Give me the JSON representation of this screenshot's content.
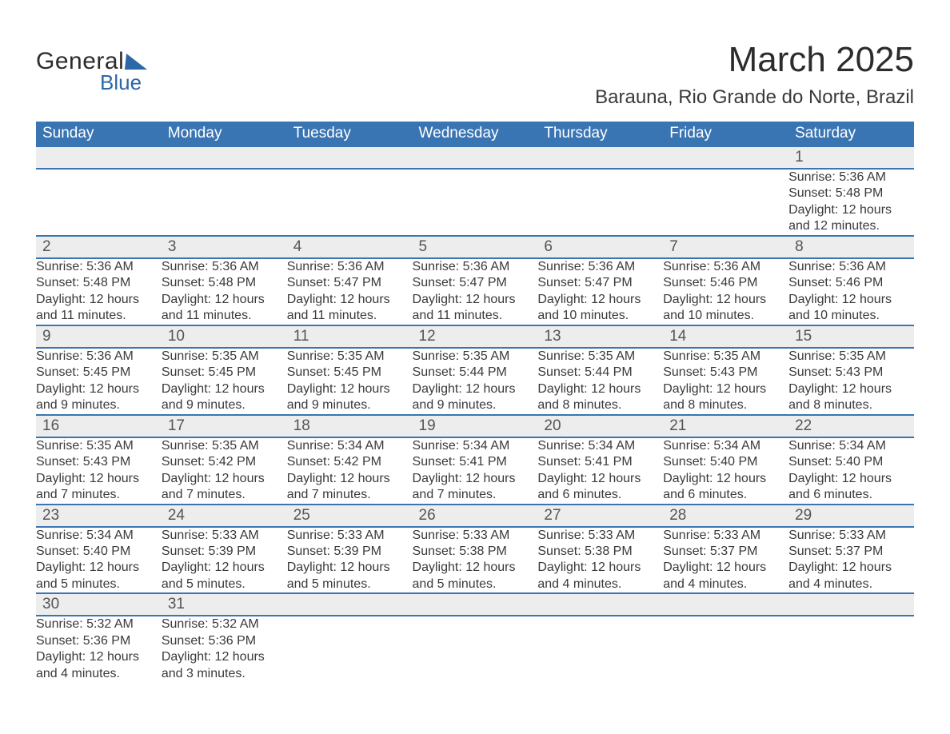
{
  "brand": {
    "word1": "General",
    "word2": "Blue",
    "accent_color": "#2c67a8"
  },
  "title": "March 2025",
  "location": "Barauna, Rio Grande do Norte, Brazil",
  "colors": {
    "header_bg": "#3a75b3",
    "header_text": "#ffffff",
    "row_separator": "#3a75b3",
    "daynum_bg": "#ededed",
    "body_text": "#3a3a3a",
    "page_bg": "#ffffff"
  },
  "font": {
    "family": "Arial",
    "title_size_pt": 33,
    "location_size_pt": 18,
    "header_size_pt": 14,
    "daynum_size_pt": 14,
    "detail_size_pt": 12
  },
  "weekdays": [
    "Sunday",
    "Monday",
    "Tuesday",
    "Wednesday",
    "Thursday",
    "Friday",
    "Saturday"
  ],
  "weeks": [
    [
      null,
      null,
      null,
      null,
      null,
      null,
      {
        "n": "1",
        "sunrise": "5:36 AM",
        "sunset": "5:48 PM",
        "daylight": "12 hours and 12 minutes."
      }
    ],
    [
      {
        "n": "2",
        "sunrise": "5:36 AM",
        "sunset": "5:48 PM",
        "daylight": "12 hours and 11 minutes."
      },
      {
        "n": "3",
        "sunrise": "5:36 AM",
        "sunset": "5:48 PM",
        "daylight": "12 hours and 11 minutes."
      },
      {
        "n": "4",
        "sunrise": "5:36 AM",
        "sunset": "5:47 PM",
        "daylight": "12 hours and 11 minutes."
      },
      {
        "n": "5",
        "sunrise": "5:36 AM",
        "sunset": "5:47 PM",
        "daylight": "12 hours and 11 minutes."
      },
      {
        "n": "6",
        "sunrise": "5:36 AM",
        "sunset": "5:47 PM",
        "daylight": "12 hours and 10 minutes."
      },
      {
        "n": "7",
        "sunrise": "5:36 AM",
        "sunset": "5:46 PM",
        "daylight": "12 hours and 10 minutes."
      },
      {
        "n": "8",
        "sunrise": "5:36 AM",
        "sunset": "5:46 PM",
        "daylight": "12 hours and 10 minutes."
      }
    ],
    [
      {
        "n": "9",
        "sunrise": "5:36 AM",
        "sunset": "5:45 PM",
        "daylight": "12 hours and 9 minutes."
      },
      {
        "n": "10",
        "sunrise": "5:35 AM",
        "sunset": "5:45 PM",
        "daylight": "12 hours and 9 minutes."
      },
      {
        "n": "11",
        "sunrise": "5:35 AM",
        "sunset": "5:45 PM",
        "daylight": "12 hours and 9 minutes."
      },
      {
        "n": "12",
        "sunrise": "5:35 AM",
        "sunset": "5:44 PM",
        "daylight": "12 hours and 9 minutes."
      },
      {
        "n": "13",
        "sunrise": "5:35 AM",
        "sunset": "5:44 PM",
        "daylight": "12 hours and 8 minutes."
      },
      {
        "n": "14",
        "sunrise": "5:35 AM",
        "sunset": "5:43 PM",
        "daylight": "12 hours and 8 minutes."
      },
      {
        "n": "15",
        "sunrise": "5:35 AM",
        "sunset": "5:43 PM",
        "daylight": "12 hours and 8 minutes."
      }
    ],
    [
      {
        "n": "16",
        "sunrise": "5:35 AM",
        "sunset": "5:43 PM",
        "daylight": "12 hours and 7 minutes."
      },
      {
        "n": "17",
        "sunrise": "5:35 AM",
        "sunset": "5:42 PM",
        "daylight": "12 hours and 7 minutes."
      },
      {
        "n": "18",
        "sunrise": "5:34 AM",
        "sunset": "5:42 PM",
        "daylight": "12 hours and 7 minutes."
      },
      {
        "n": "19",
        "sunrise": "5:34 AM",
        "sunset": "5:41 PM",
        "daylight": "12 hours and 7 minutes."
      },
      {
        "n": "20",
        "sunrise": "5:34 AM",
        "sunset": "5:41 PM",
        "daylight": "12 hours and 6 minutes."
      },
      {
        "n": "21",
        "sunrise": "5:34 AM",
        "sunset": "5:40 PM",
        "daylight": "12 hours and 6 minutes."
      },
      {
        "n": "22",
        "sunrise": "5:34 AM",
        "sunset": "5:40 PM",
        "daylight": "12 hours and 6 minutes."
      }
    ],
    [
      {
        "n": "23",
        "sunrise": "5:34 AM",
        "sunset": "5:40 PM",
        "daylight": "12 hours and 5 minutes."
      },
      {
        "n": "24",
        "sunrise": "5:33 AM",
        "sunset": "5:39 PM",
        "daylight": "12 hours and 5 minutes."
      },
      {
        "n": "25",
        "sunrise": "5:33 AM",
        "sunset": "5:39 PM",
        "daylight": "12 hours and 5 minutes."
      },
      {
        "n": "26",
        "sunrise": "5:33 AM",
        "sunset": "5:38 PM",
        "daylight": "12 hours and 5 minutes."
      },
      {
        "n": "27",
        "sunrise": "5:33 AM",
        "sunset": "5:38 PM",
        "daylight": "12 hours and 4 minutes."
      },
      {
        "n": "28",
        "sunrise": "5:33 AM",
        "sunset": "5:37 PM",
        "daylight": "12 hours and 4 minutes."
      },
      {
        "n": "29",
        "sunrise": "5:33 AM",
        "sunset": "5:37 PM",
        "daylight": "12 hours and 4 minutes."
      }
    ],
    [
      {
        "n": "30",
        "sunrise": "5:32 AM",
        "sunset": "5:36 PM",
        "daylight": "12 hours and 4 minutes."
      },
      {
        "n": "31",
        "sunrise": "5:32 AM",
        "sunset": "5:36 PM",
        "daylight": "12 hours and 3 minutes."
      },
      null,
      null,
      null,
      null,
      null
    ]
  ],
  "labels": {
    "sunrise": "Sunrise: ",
    "sunset": "Sunset: ",
    "daylight": "Daylight: "
  }
}
